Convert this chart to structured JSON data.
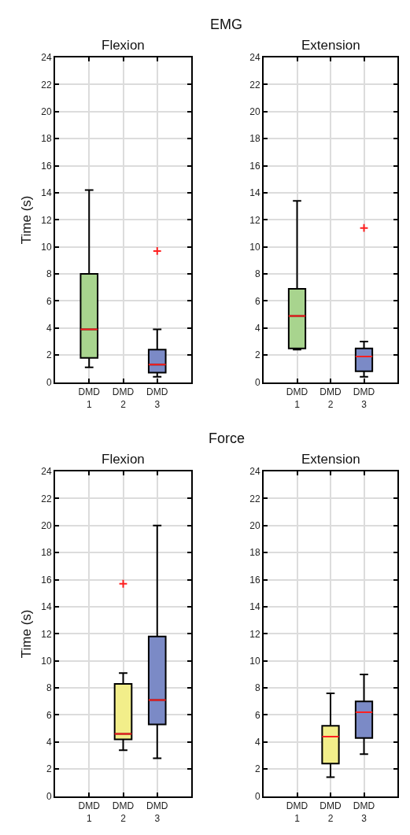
{
  "chart_data": [
    {
      "type": "box",
      "title": "Flexion",
      "ylabel": "Time (s)",
      "annotations": [
        "EMG"
      ],
      "categories": [
        "DMD\n1",
        "DMD\n2",
        "DMD\n3"
      ],
      "colors": [
        "#a8d48e",
        "#f2ee8a",
        "#7b8ac6"
      ],
      "ylim": [
        0,
        24
      ],
      "yticks": [
        0,
        2,
        4,
        6,
        8,
        10,
        12,
        14,
        16,
        18,
        20,
        22,
        24
      ],
      "grid": true,
      "boxes": [
        {
          "low": 1.1,
          "q1": 1.8,
          "median": 3.9,
          "q3": 8.0,
          "high": 14.2
        },
        null,
        {
          "low": 0.4,
          "q1": 0.7,
          "median": 1.3,
          "q3": 2.4,
          "high": 3.9,
          "outliers": [
            9.7
          ]
        }
      ]
    },
    {
      "type": "box",
      "title": "Extension",
      "categories": [
        "DMD\n1",
        "DMD\n2",
        "DMD\n3"
      ],
      "colors": [
        "#a8d48e",
        "#f2ee8a",
        "#7b8ac6"
      ],
      "ylim": [
        0,
        24
      ],
      "yticks": [
        0,
        2,
        4,
        6,
        8,
        10,
        12,
        14,
        16,
        18,
        20,
        22,
        24
      ],
      "grid": true,
      "boxes": [
        {
          "low": 2.4,
          "q1": 2.5,
          "median": 4.9,
          "q3": 6.9,
          "high": 13.4
        },
        null,
        {
          "low": 0.4,
          "q1": 0.8,
          "median": 1.9,
          "q3": 2.5,
          "high": 3.0,
          "outliers": [
            11.4
          ]
        }
      ]
    },
    {
      "type": "box",
      "title": "Flexion",
      "ylabel": "Time (s)",
      "annotations": [
        "Force"
      ],
      "categories": [
        "DMD\n1",
        "DMD\n2",
        "DMD\n3"
      ],
      "colors": [
        "#a8d48e",
        "#f2ee8a",
        "#7b8ac6"
      ],
      "ylim": [
        0,
        24
      ],
      "yticks": [
        0,
        2,
        4,
        6,
        8,
        10,
        12,
        14,
        16,
        18,
        20,
        22,
        24
      ],
      "grid": true,
      "boxes": [
        null,
        {
          "low": 3.4,
          "q1": 4.2,
          "median": 4.6,
          "q3": 8.3,
          "high": 9.1,
          "outliers": [
            15.7
          ]
        },
        {
          "low": 2.8,
          "q1": 5.3,
          "median": 7.1,
          "q3": 11.8,
          "high": 20.0
        }
      ]
    },
    {
      "type": "box",
      "title": "Extension",
      "categories": [
        "DMD\n1",
        "DMD\n2",
        "DMD\n3"
      ],
      "colors": [
        "#a8d48e",
        "#f2ee8a",
        "#7b8ac6"
      ],
      "ylim": [
        0,
        24
      ],
      "yticks": [
        0,
        2,
        4,
        6,
        8,
        10,
        12,
        14,
        16,
        18,
        20,
        22,
        24
      ],
      "grid": true,
      "boxes": [
        null,
        {
          "low": 1.4,
          "q1": 2.4,
          "median": 4.4,
          "q3": 5.2,
          "high": 7.6
        },
        {
          "low": 3.1,
          "q1": 4.3,
          "median": 6.2,
          "q3": 7.0,
          "high": 9.0
        }
      ]
    }
  ]
}
